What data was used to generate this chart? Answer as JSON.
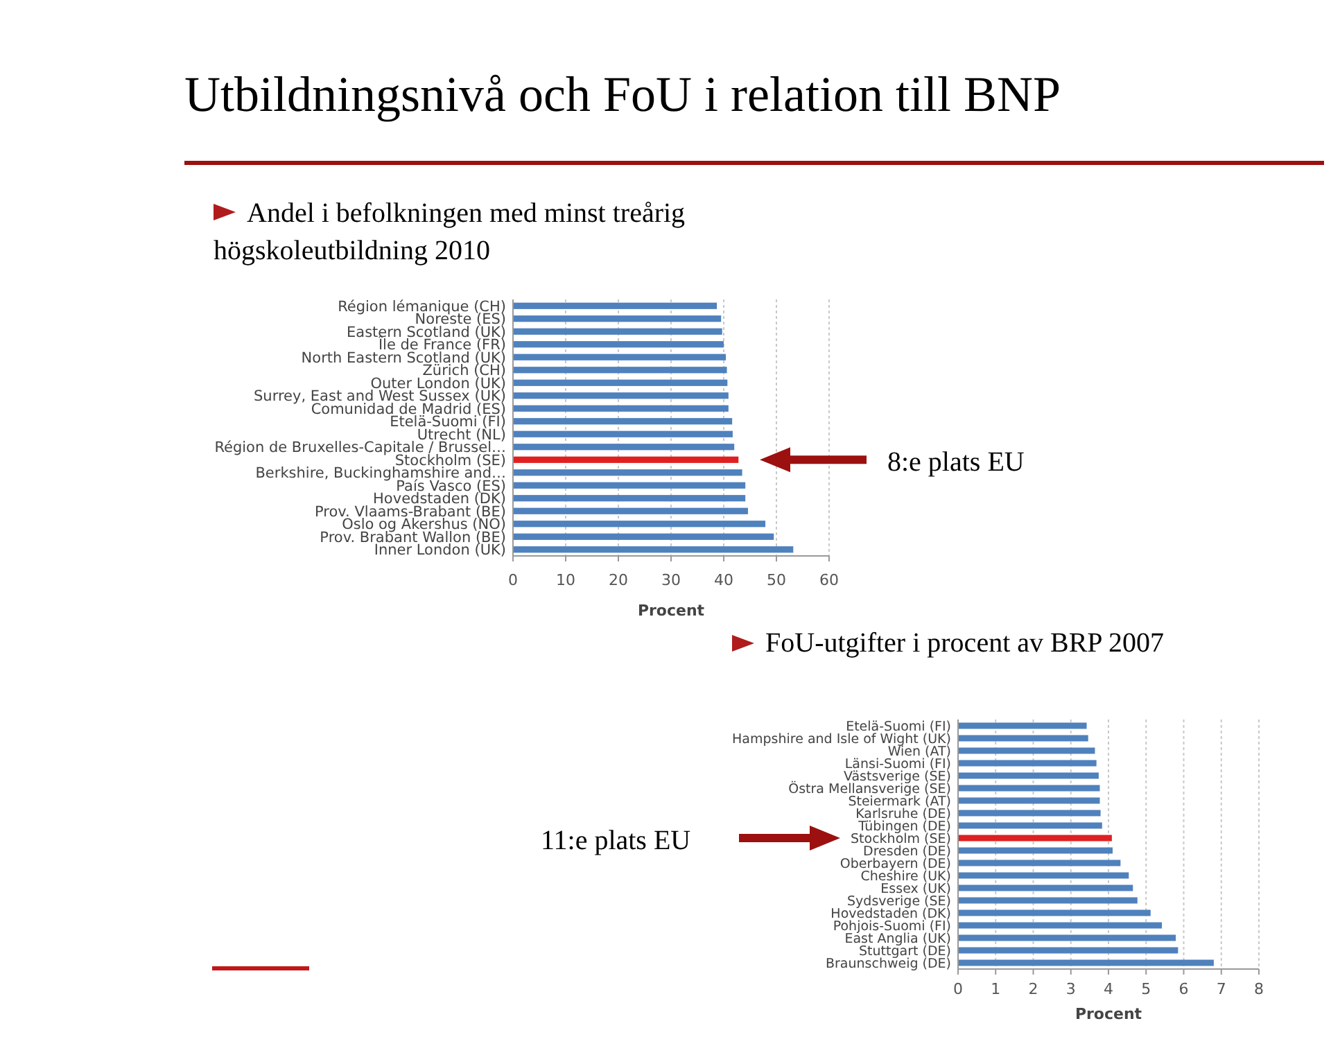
{
  "chart_data": [
    {
      "type": "bar",
      "orientation": "horizontal",
      "title": "Utbildningsnivå och FoU i relation till BNP",
      "subtitle": "Andel i befolkningen med minst treårig högskoleutbildning 2010",
      "xlabel": "Procent",
      "categories": [
        "Région lémanique (CH)",
        "Noreste (ES)",
        "Eastern Scotland (UK)",
        "Île de France (FR)",
        "North Eastern Scotland (UK)",
        "Zürich (CH)",
        "Outer London (UK)",
        "Surrey, East and West Sussex (UK)",
        "Comunidad de Madrid (ES)",
        "Etelä-Suomi (FI)",
        "Utrecht (NL)",
        "Région de Bruxelles-Capitale / Brussel…",
        "Stockholm (SE)",
        "Berkshire, Buckinghamshire and…",
        "País Vasco (ES)",
        "Hovedstaden (DK)",
        "Prov. Vlaams-Brabant (BE)",
        "Oslo og Akershus (NO)",
        "Prov. Brabant Wallon (BE)",
        "Inner London (UK)"
      ],
      "values": [
        38.7,
        39.5,
        39.7,
        40.0,
        40.4,
        40.6,
        40.7,
        40.9,
        40.9,
        41.6,
        41.7,
        42.0,
        42.8,
        43.5,
        44.1,
        44.1,
        44.6,
        47.9,
        49.5,
        53.2
      ],
      "colors": [
        "#4f81bd",
        "#4f81bd",
        "#4f81bd",
        "#4f81bd",
        "#4f81bd",
        "#4f81bd",
        "#4f81bd",
        "#4f81bd",
        "#4f81bd",
        "#4f81bd",
        "#4f81bd",
        "#4f81bd",
        "#e02020",
        "#4f81bd",
        "#4f81bd",
        "#4f81bd",
        "#4f81bd",
        "#4f81bd",
        "#4f81bd",
        "#4f81bd"
      ],
      "xlim": [
        0,
        60
      ],
      "xticks": [
        0,
        10,
        20,
        30,
        40,
        50,
        60
      ],
      "grid": "x",
      "annotations": [
        "8:e plats EU"
      ]
    },
    {
      "type": "bar",
      "orientation": "horizontal",
      "title": "FoU-utgifter i procent av BRP 2007",
      "xlabel": "Procent",
      "categories": [
        "Etelä-Suomi (FI)",
        "Hampshire and Isle of Wight (UK)",
        "Wien (AT)",
        "Länsi-Suomi (FI)",
        "Västsverige (SE)",
        "Östra Mellansverige (SE)",
        "Steiermark (AT)",
        "Karlsruhe (DE)",
        "Tübingen (DE)",
        "Stockholm (SE)",
        "Dresden (DE)",
        "Oberbayern (DE)",
        "Cheshire (UK)",
        "Essex (UK)",
        "Sydsverige (SE)",
        "Hovedstaden (DK)",
        "Pohjois-Suomi (FI)",
        "East Anglia (UK)",
        "Stuttgart (DE)",
        "Braunschweig (DE)"
      ],
      "values": [
        3.42,
        3.46,
        3.64,
        3.68,
        3.74,
        3.77,
        3.77,
        3.79,
        3.83,
        4.09,
        4.11,
        4.32,
        4.54,
        4.65,
        4.77,
        5.12,
        5.42,
        5.79,
        5.85,
        6.8
      ],
      "colors": [
        "#4f81bd",
        "#4f81bd",
        "#4f81bd",
        "#4f81bd",
        "#4f81bd",
        "#4f81bd",
        "#4f81bd",
        "#4f81bd",
        "#4f81bd",
        "#e02020",
        "#4f81bd",
        "#4f81bd",
        "#4f81bd",
        "#4f81bd",
        "#4f81bd",
        "#4f81bd",
        "#4f81bd",
        "#4f81bd",
        "#4f81bd",
        "#4f81bd"
      ],
      "xlim": [
        0,
        8
      ],
      "xticks": [
        0,
        1,
        2,
        3,
        4,
        5,
        6,
        7,
        8
      ],
      "grid": "x",
      "annotations": [
        "11:e plats EU"
      ]
    }
  ]
}
